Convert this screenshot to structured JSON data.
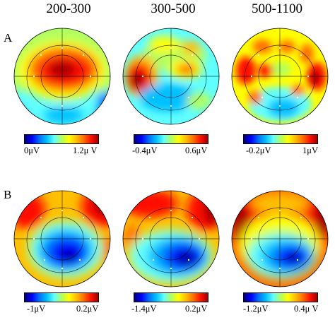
{
  "columns": [
    "200-300",
    "300-500",
    "500-1100"
  ],
  "rows": [
    "A",
    "B"
  ],
  "colorbars": {
    "A": [
      {
        "min": "0μV",
        "max": "1.2μ V"
      },
      {
        "min": "-0.4μV",
        "max": "0.6μV"
      },
      {
        "min": "-0.2μV",
        "max": "1μV"
      }
    ],
    "B": [
      {
        "min": "-1μV",
        "max": "0.2μV"
      },
      {
        "min": "-1.4μV",
        "max": "0.2μV"
      },
      {
        "min": "-1.2μV",
        "max": "0.4μ V"
      }
    ]
  },
  "colormap": [
    "#00007a",
    "#0000ff",
    "#0070ff",
    "#00c0ff",
    "#60ffff",
    "#b0ff60",
    "#ffff00",
    "#ffc000",
    "#ff7000",
    "#ff1000",
    "#a00000"
  ]
}
